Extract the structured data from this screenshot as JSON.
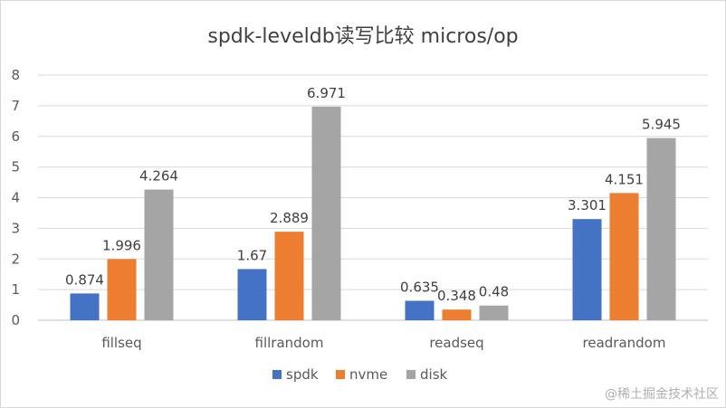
{
  "chart_data": {
    "type": "bar",
    "title": "spdk-leveldb读写比较 micros/op",
    "categories": [
      "fillseq",
      "fillrandom",
      "readseq",
      "readrandom"
    ],
    "series": [
      {
        "name": "spdk",
        "color": "#4472C4",
        "values": [
          0.874,
          1.67,
          0.635,
          3.301
        ]
      },
      {
        "name": "nvme",
        "color": "#ED7D31",
        "values": [
          1.996,
          2.889,
          0.348,
          4.151
        ]
      },
      {
        "name": "disk",
        "color": "#A5A5A5",
        "values": [
          4.264,
          6.971,
          0.48,
          5.945
        ]
      }
    ],
    "data_labels": [
      [
        "0.874",
        "1.67",
        "0.635",
        "3.301"
      ],
      [
        "1.996",
        "2.889",
        "0.348",
        "4.151"
      ],
      [
        "4.264",
        "6.971",
        "0.48",
        "5.945"
      ]
    ],
    "ylim": [
      0,
      8
    ],
    "yticks": [
      "0",
      "1",
      "2",
      "3",
      "4",
      "5",
      "6",
      "7",
      "8"
    ],
    "grid": true,
    "legend": "bottom"
  },
  "watermark": "@稀土掘金技术社区"
}
